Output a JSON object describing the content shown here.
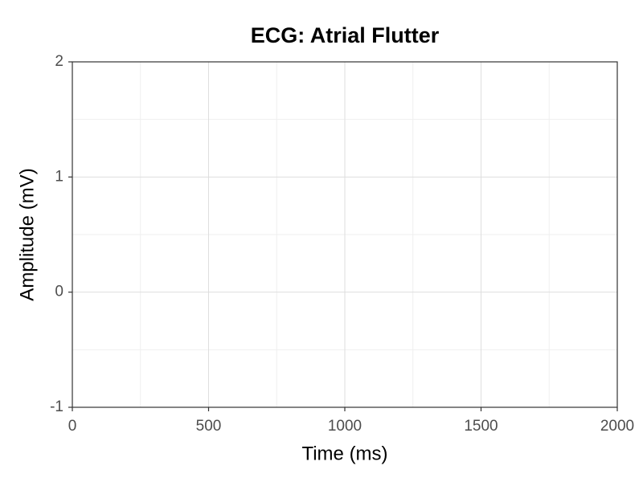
{
  "chart_data": {
    "type": "line",
    "title": "ECG: Atrial Flutter",
    "x_label": "Time (ms)",
    "y_label": "Amplitude (mV)",
    "xlim": [
      0,
      2000
    ],
    "xticks": [
      0,
      500,
      1000,
      1500,
      2000
    ],
    "ylim": [
      -1,
      2
    ],
    "yticks": [
      -1,
      0,
      1,
      2
    ],
    "grid": true,
    "series": []
  }
}
